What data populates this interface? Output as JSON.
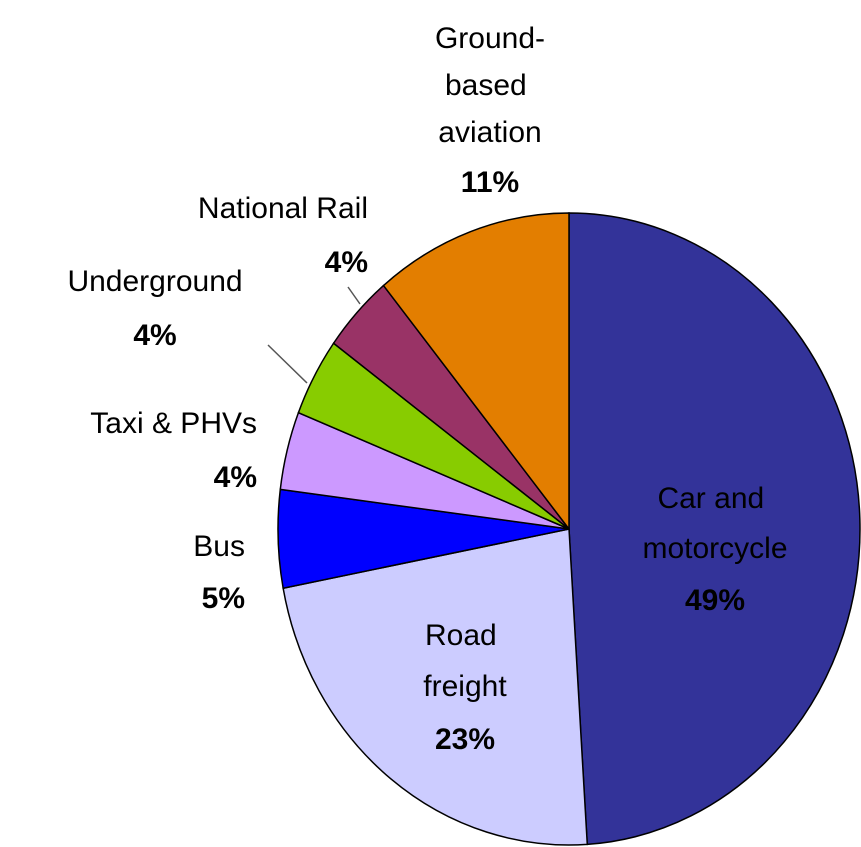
{
  "chart_data": {
    "type": "pie",
    "categories": [
      "Car and motorcycle",
      "Road freight",
      "Bus",
      "Taxi & PHVs",
      "Underground",
      "National Rail",
      "Ground-based aviation"
    ],
    "values": [
      49,
      23,
      5,
      4,
      4,
      4,
      11
    ],
    "value_labels": [
      "49%",
      "23%",
      "5%",
      "4%",
      "4%",
      "4%",
      "11%"
    ],
    "colors": [
      "#333399",
      "#ccccff",
      "#0000ff",
      "#cc99ff",
      "#88cc00",
      "#993366",
      "#e37e00"
    ]
  }
}
